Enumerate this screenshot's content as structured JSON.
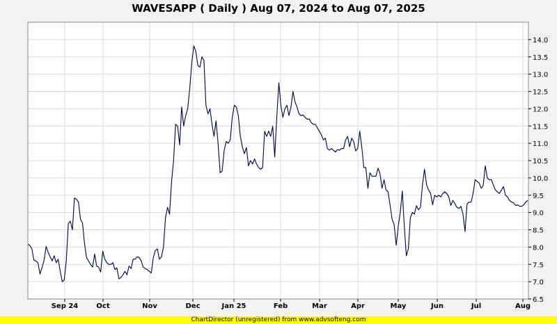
{
  "chart_data": {
    "type": "line",
    "title": "WAVESAPP ( Daily ) Aug 07, 2024 to Aug 07, 2025",
    "xlabel": "",
    "ylabel": "",
    "ylim": [
      6.5,
      14.5
    ],
    "y_ticks": [
      "6.5",
      "7.0",
      "7.5",
      "8.0",
      "8.5",
      "9.0",
      "9.5",
      "10.0",
      "10.5",
      "11.0",
      "11.5",
      "12.0",
      "12.5",
      "13.0",
      "13.5",
      "14.0"
    ],
    "x_ticks": [
      "Sep 24",
      "Oct",
      "Nov",
      "Dec",
      "Jan 25",
      "Feb",
      "Mar",
      "Apr",
      "May",
      "Jun",
      "Jul",
      "Aug"
    ],
    "grid": true,
    "line_color": "#000040",
    "series": [
      {
        "values": [
          8.08,
          8.05,
          7.95,
          7.62,
          7.6,
          7.55,
          7.22,
          7.4,
          7.62,
          8.02,
          7.85,
          7.72,
          7.6,
          7.75,
          7.55,
          7.65,
          7.3,
          7.0,
          7.05,
          7.6,
          8.68,
          8.75,
          8.5,
          9.42,
          9.38,
          9.3,
          8.8,
          8.7,
          8.1,
          7.7,
          7.6,
          7.5,
          7.42,
          7.8,
          7.45,
          7.42,
          7.28,
          7.88,
          7.65,
          7.55,
          7.5,
          7.5,
          7.55,
          7.35,
          7.4,
          7.08,
          7.12,
          7.2,
          7.3,
          7.2,
          7.45,
          7.38,
          7.65,
          7.65,
          7.72,
          7.7,
          7.6,
          7.42,
          7.38,
          7.35,
          7.3,
          7.25,
          7.7,
          7.9,
          7.95,
          7.65,
          7.72,
          8.0,
          8.85,
          9.15,
          8.95,
          9.88,
          10.5,
          11.55,
          11.5,
          10.95,
          12.05,
          11.5,
          11.8,
          12.0,
          12.6,
          13.35,
          13.82,
          13.65,
          13.25,
          13.2,
          13.5,
          13.4,
          12.1,
          11.85,
          12.0,
          11.55,
          11.2,
          11.65,
          11.0,
          10.15,
          10.2,
          10.8,
          11.05,
          11.0,
          11.1,
          11.75,
          12.1,
          12.05,
          11.8,
          11.2,
          10.9,
          10.7,
          10.88,
          10.35,
          10.5,
          10.4,
          10.55,
          10.4,
          10.3,
          10.25,
          10.3,
          11.35,
          11.2,
          11.35,
          11.2,
          11.5,
          10.6,
          11.75,
          12.75,
          12.1,
          11.75,
          12.0,
          12.1,
          11.8,
          12.05,
          12.5,
          12.2,
          12.05,
          11.85,
          11.8,
          11.82,
          11.75,
          11.7,
          11.7,
          11.6,
          11.55,
          11.55,
          11.45,
          11.35,
          11.25,
          11.1,
          11.15,
          10.85,
          10.8,
          10.85,
          10.8,
          10.75,
          10.82,
          10.8,
          10.85,
          10.85,
          11.1,
          11.2,
          10.9,
          11.15,
          11.05,
          10.78,
          10.85,
          11.35,
          10.9,
          10.3,
          10.3,
          9.7,
          10.15,
          10.05,
          10.05,
          10.05,
          10.28,
          10.12,
          9.7,
          9.95,
          9.65,
          9.6,
          9.2,
          8.8,
          8.65,
          8.05,
          8.6,
          9.0,
          9.62,
          8.6,
          7.75,
          7.95,
          8.85,
          9.0,
          8.95,
          9.2,
          9.08,
          9.15,
          9.8,
          10.25,
          9.8,
          9.65,
          9.55,
          9.22,
          9.5,
          9.45,
          9.5,
          9.45,
          9.55,
          9.6,
          9.55,
          9.45,
          9.2,
          9.35,
          9.25,
          9.15,
          9.12,
          9.18,
          8.95,
          8.45,
          9.25,
          9.3,
          9.3,
          9.55,
          9.95,
          9.9,
          9.85,
          9.7,
          9.78,
          10.35,
          10.0,
          9.95,
          9.95,
          9.8,
          9.65,
          9.6,
          9.55,
          9.65,
          9.75,
          9.5,
          9.45,
          9.35,
          9.3,
          9.28,
          9.2,
          9.22,
          9.18,
          9.18,
          9.22,
          9.3,
          9.35
        ]
      }
    ]
  },
  "footer": {
    "text": "ChartDirector (unregistered) from www.advsofteng.com"
  },
  "colors": {
    "background": "#f2f2f2",
    "plot_background": "#ffffff",
    "grid": "#d9d9d9",
    "line": "#000040",
    "footer_bg": "#ffff00"
  }
}
